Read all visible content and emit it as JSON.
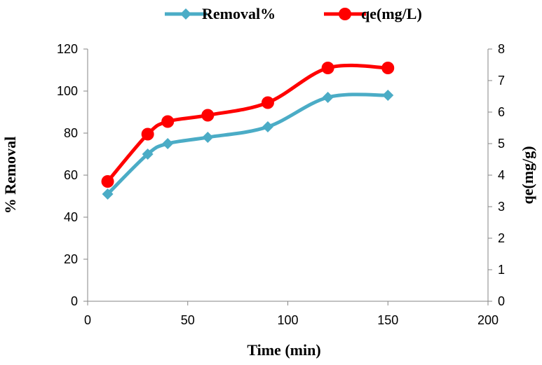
{
  "chart_data": {
    "type": "line",
    "x": [
      10,
      30,
      40,
      60,
      90,
      120,
      150
    ],
    "series": [
      {
        "name": "Removal%",
        "axis": "left",
        "color": "#4bacc6",
        "marker": "diamond",
        "values": [
          51,
          70,
          75,
          78,
          83,
          97,
          98
        ]
      },
      {
        "name": "qe(mg/L)",
        "axis": "right",
        "color": "#ff0000",
        "marker": "circle",
        "values": [
          3.8,
          5.3,
          5.7,
          5.9,
          6.3,
          7.4,
          7.4
        ]
      }
    ],
    "xlabel": "Time (min)",
    "ylabel": "% Removal",
    "y2label": "qe(mg/g)",
    "xlim": [
      0,
      200
    ],
    "ylim": [
      0,
      120
    ],
    "y2lim": [
      0,
      8
    ],
    "xticks": [
      "0",
      "50",
      "100",
      "150",
      "200"
    ],
    "yticks": [
      "0",
      "20",
      "40",
      "60",
      "80",
      "100",
      "120"
    ],
    "y2ticks": [
      "0",
      "1",
      "2",
      "3",
      "4",
      "5",
      "6",
      "7",
      "8"
    ],
    "grid": false,
    "legend_position": "top"
  }
}
